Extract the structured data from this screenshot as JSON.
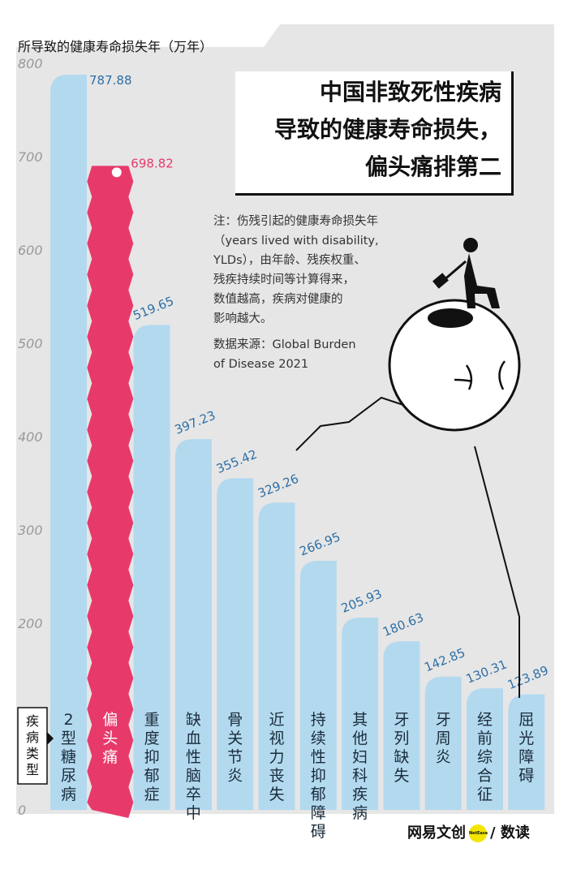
{
  "chart_data": {
    "type": "bar",
    "title": "中国非致死性疾病导致的健康寿命损失，偏头痛排第二",
    "title_lines": [
      "中国非致死性疾病",
      "导致的健康寿命损失，",
      "偏头痛排第二"
    ],
    "ylabel": "所导致的健康寿命损失年（万年）",
    "xlabel_lines": [
      "疾病",
      "类型"
    ],
    "ylim": [
      0,
      800
    ],
    "yticks": [
      0,
      100,
      200,
      300,
      400,
      500,
      600,
      700,
      800
    ],
    "ytick_labels": [
      "0",
      "100",
      "200",
      "300",
      "400",
      "500",
      "600",
      "700",
      "800"
    ],
    "categories": [
      "2型糖尿病",
      "偏头痛",
      "重度抑郁症",
      "缺血性脑卒中",
      "骨关节炎",
      "近视力丧失",
      "持续性抑郁障碍",
      "其他妇科疾病",
      "牙列缺失",
      "牙周炎",
      "经前综合征",
      "屈光障碍"
    ],
    "values": [
      787.88,
      698.82,
      519.65,
      397.23,
      355.42,
      329.26,
      266.95,
      205.93,
      180.63,
      142.85,
      130.31,
      123.89
    ],
    "value_labels": [
      "787.88",
      "698.82",
      "519.65",
      "397.23",
      "355.42",
      "329.26",
      "266.95",
      "205.93",
      "180.63",
      "142.85",
      "130.31",
      "123.89"
    ],
    "highlight_index": 1,
    "colors": {
      "bar": "#b3d9ef",
      "highlight": "#e73a6b",
      "value_text": "#2e6fa6",
      "highlight_text": "#e73a6b",
      "axis_text": "#999999",
      "background_panel": "#e6e6e6"
    }
  },
  "note": {
    "lines": [
      "注：伤残引起的健康寿命损失年",
      "（years lived with disability,",
      "YLDs），由年龄、残疾权重、",
      "残疾持续时间等计算得来，",
      "数值越高，疾病对健康的",
      "影响越大。"
    ],
    "source_lines": [
      "数据来源：Global Burden",
      "of Disease 2021"
    ]
  },
  "brand": {
    "name": "网易文创",
    "badge": "NetEase",
    "section": "/ 数读"
  }
}
